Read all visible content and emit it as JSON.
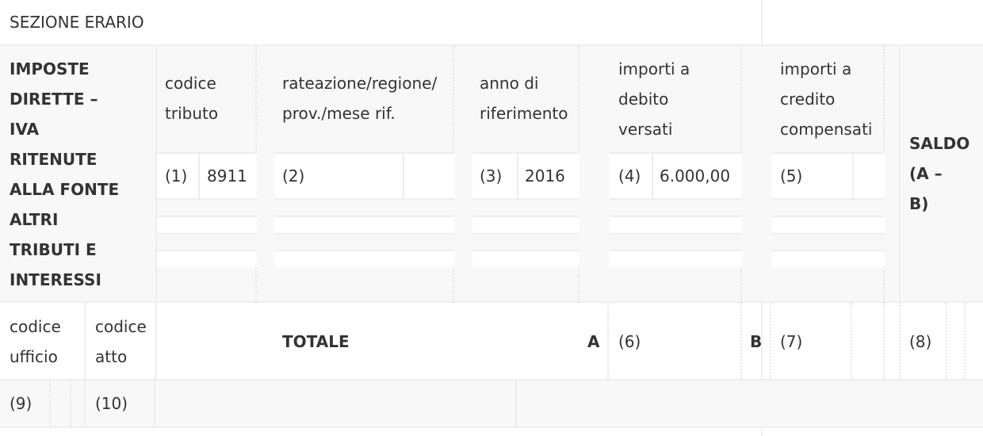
{
  "section_title": "SEZIONE ERARIO",
  "row_label": [
    "IMPOSTE",
    "DIRETTE –",
    "IVA",
    "RITENUTE",
    "ALLA FONTE",
    "ALTRI",
    "TRIBUTI E",
    "INTERESSI"
  ],
  "headers": {
    "codice_tributo": [
      "codice",
      "tributo"
    ],
    "rateazione": [
      "rateazione/regione/",
      "prov./mese rif."
    ],
    "anno": [
      "anno di",
      "riferimento"
    ],
    "debito": [
      "importi a",
      "debito",
      "versati"
    ],
    "credito": [
      "importi a",
      "credito",
      "compensati"
    ],
    "saldo": [
      "SALDO",
      "(A –",
      "B)"
    ]
  },
  "entries": {
    "n1": "(1)",
    "codice_tributo": "8911",
    "n2": "(2)",
    "n3": "(3)",
    "anno": "2016",
    "n4": "(4)",
    "debito": "6.000,00",
    "n5": "(5)"
  },
  "totals": {
    "codice_ufficio": [
      "codice",
      "ufficio"
    ],
    "codice_atto": [
      "codice",
      "atto"
    ],
    "totale": "TOTALE",
    "a": "A",
    "n6": "(6)",
    "b": "B",
    "n7": "(7)",
    "n8": "(8)"
  },
  "footer": {
    "n9": "(9)",
    "n10": "(10)"
  }
}
